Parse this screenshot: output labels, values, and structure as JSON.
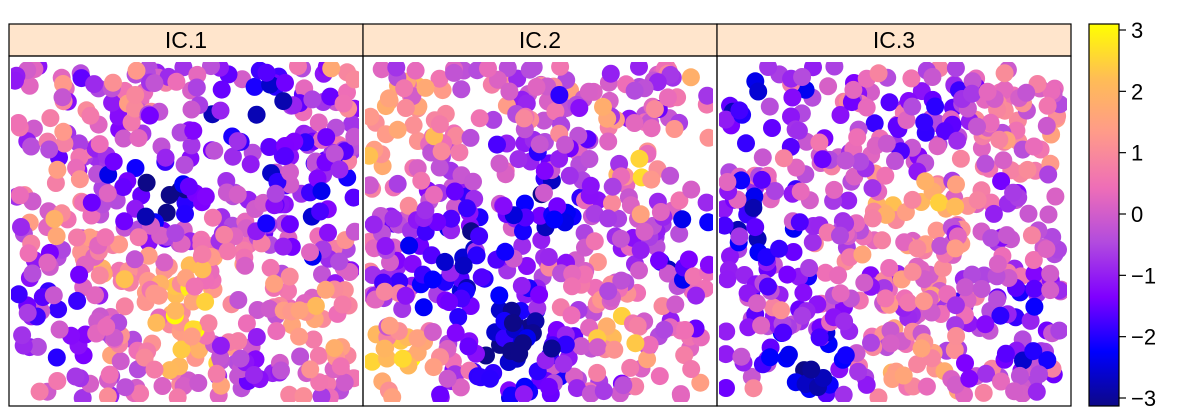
{
  "chart_data": {
    "type": "scatter",
    "panels": [
      {
        "title": "IC.1",
        "seed": 11,
        "blobs": [
          {
            "cx": 0.42,
            "cy": 0.38,
            "s": 0.1,
            "a": -3.0
          },
          {
            "cx": 0.7,
            "cy": 0.12,
            "s": 0.1,
            "a": -2.6
          },
          {
            "cx": 0.9,
            "cy": 0.4,
            "s": 0.12,
            "a": -1.6
          },
          {
            "cx": 0.52,
            "cy": 0.75,
            "s": 0.15,
            "a": 1.8
          },
          {
            "cx": 0.15,
            "cy": 0.7,
            "s": 0.1,
            "a": -1.6
          },
          {
            "cx": 0.72,
            "cy": 0.9,
            "s": 0.08,
            "a": -1.6
          },
          {
            "cx": 0.25,
            "cy": 0.55,
            "s": 0.12,
            "a": 1.0
          },
          {
            "cx": 0.92,
            "cy": 0.82,
            "s": 0.08,
            "a": 1.8
          }
        ]
      },
      {
        "title": "IC.2",
        "seed": 23,
        "blobs": [
          {
            "cx": 0.42,
            "cy": 0.85,
            "s": 0.11,
            "a": -3.0
          },
          {
            "cx": 0.25,
            "cy": 0.55,
            "s": 0.12,
            "a": -2.0
          },
          {
            "cx": 0.55,
            "cy": 0.4,
            "s": 0.1,
            "a": -1.8
          },
          {
            "cx": 0.08,
            "cy": 0.18,
            "s": 0.1,
            "a": 2.0
          },
          {
            "cx": 0.72,
            "cy": 0.8,
            "s": 0.06,
            "a": 2.3
          },
          {
            "cx": 0.1,
            "cy": 0.88,
            "s": 0.08,
            "a": 2.0
          },
          {
            "cx": 0.78,
            "cy": 0.35,
            "s": 0.1,
            "a": 1.2
          },
          {
            "cx": 0.9,
            "cy": 0.55,
            "s": 0.09,
            "a": -1.5
          }
        ]
      },
      {
        "title": "IC.3",
        "seed": 37,
        "blobs": [
          {
            "cx": 0.25,
            "cy": 0.9,
            "s": 0.1,
            "a": -2.8
          },
          {
            "cx": 0.08,
            "cy": 0.5,
            "s": 0.1,
            "a": -1.8
          },
          {
            "cx": 0.55,
            "cy": 0.45,
            "s": 0.1,
            "a": 2.2
          },
          {
            "cx": 0.1,
            "cy": 0.12,
            "s": 0.08,
            "a": -2.0
          },
          {
            "cx": 0.6,
            "cy": 0.18,
            "s": 0.1,
            "a": -1.5
          },
          {
            "cx": 0.85,
            "cy": 0.8,
            "s": 0.09,
            "a": -1.6
          },
          {
            "cx": 0.55,
            "cy": 0.9,
            "s": 0.08,
            "a": 1.6
          },
          {
            "cx": 0.85,
            "cy": 0.22,
            "s": 0.12,
            "a": 0.8
          }
        ]
      }
    ],
    "points_per_panel": 560,
    "color_scale": {
      "min": -3,
      "max": 3,
      "ticks": [
        3,
        2,
        1,
        0,
        -1,
        -2,
        -3
      ],
      "tick_labels": [
        "3",
        "2",
        "1",
        "0",
        "−1",
        "−2",
        "−3"
      ],
      "stops": [
        "#0d0887",
        "#0000ff",
        "#7f00ff",
        "#b24bde",
        "#ee6eb7",
        "#ff9a8a",
        "#ffbd55",
        "#ffff00"
      ]
    },
    "strip_color": "#ffe5cc"
  }
}
